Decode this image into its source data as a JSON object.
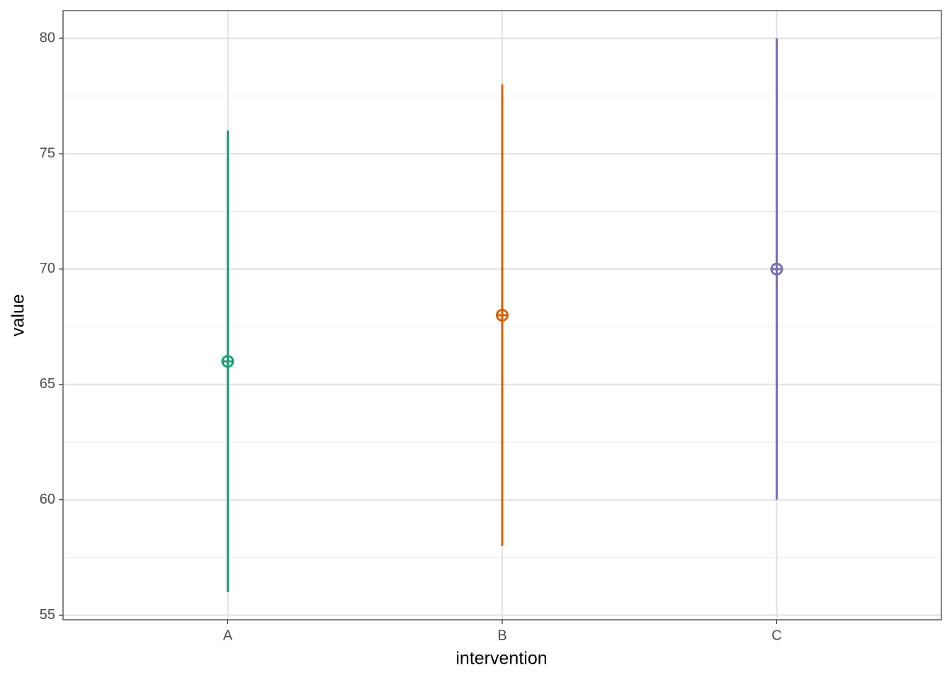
{
  "chart_data": {
    "type": "pointrange",
    "x_label": "intervention",
    "y_label": "value",
    "categories": [
      "A",
      "B",
      "C"
    ],
    "values": [
      66,
      68,
      70
    ],
    "lower": [
      56,
      58,
      60
    ],
    "upper": [
      76,
      78,
      80
    ],
    "colors": [
      "#1b9e77",
      "#d95f02",
      "#7570b3"
    ],
    "ylim": [
      54.8,
      81.2
    ],
    "yticks": [
      55,
      60,
      65,
      70,
      75,
      80
    ],
    "grid": true
  }
}
